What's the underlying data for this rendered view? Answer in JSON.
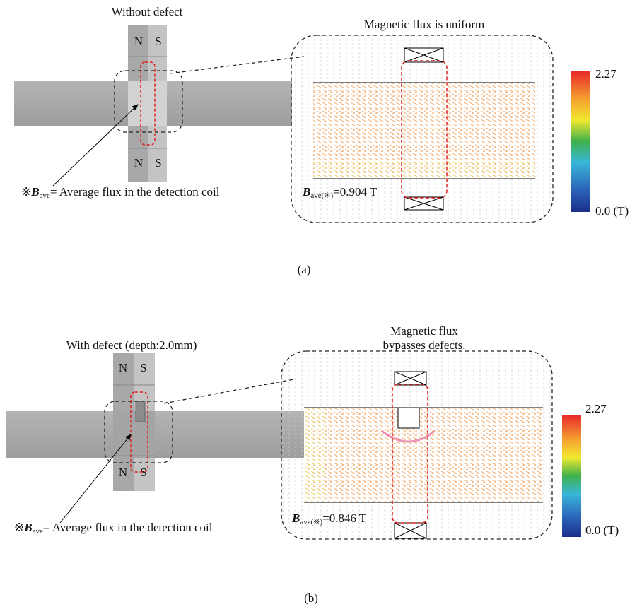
{
  "panels": [
    {
      "title": "Without defect",
      "magnets": {
        "top": [
          "N",
          "S"
        ],
        "bottom": [
          "N",
          "S"
        ]
      },
      "note": {
        "prefix": "※",
        "symbol": "B",
        "subscript": "ave",
        "text": "= Average flux in the detection coil"
      },
      "zoom": {
        "title": [
          "Magnetic flux is uniform"
        ],
        "result": {
          "symbol": "B",
          "subscript": "ave(※)",
          "text": "=0.904 T"
        }
      },
      "colorbar": {
        "max": "2.27",
        "min": "0.0 (T)"
      },
      "caption": "(a)"
    },
    {
      "title": "With defect (depth:2.0mm)",
      "magnets": {
        "top": [
          "N",
          "S"
        ],
        "bottom": [
          "N",
          "S"
        ]
      },
      "note": {
        "prefix": "※",
        "symbol": "B",
        "subscript": "ave",
        "text": "= Average flux in the detection coil"
      },
      "zoom": {
        "title": [
          "Magnetic flux",
          "bypasses defects."
        ],
        "result": {
          "symbol": "B",
          "subscript": "ave(※)",
          "text": "=0.846 T"
        }
      },
      "colorbar": {
        "max": "2.27",
        "min": "0.0 (T)"
      },
      "caption": "(b)"
    }
  ]
}
